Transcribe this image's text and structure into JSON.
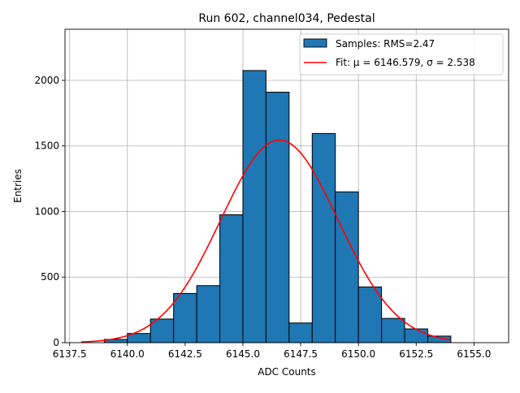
{
  "chart_data": {
    "type": "bar",
    "title": "Run 602, channel034, Pedestal",
    "xlabel": "ADC Counts",
    "ylabel": "Entries",
    "xlim": [
      6137.3,
      6156.5
    ],
    "ylim": [
      0,
      2390
    ],
    "grid": true,
    "legend_position": "top-right",
    "bar_color": "#1f77b4",
    "fit_color": "#ff0000",
    "x_ticks": [
      6137.5,
      6140.0,
      6142.5,
      6145.0,
      6147.5,
      6150.0,
      6152.5,
      6155.0
    ],
    "x_tick_labels": [
      "6137.5",
      "6140.0",
      "6142.5",
      "6145.0",
      "6147.5",
      "6150.0",
      "6152.5",
      "6155.0"
    ],
    "y_ticks": [
      0,
      500,
      1000,
      1500,
      2000
    ],
    "y_tick_labels": [
      "0",
      "500",
      "1000",
      "1500",
      "2000"
    ],
    "bins": [
      {
        "x0": 6139.0,
        "x1": 6140.0,
        "count": 25
      },
      {
        "x0": 6140.0,
        "x1": 6141.0,
        "count": 70
      },
      {
        "x0": 6141.0,
        "x1": 6142.0,
        "count": 180
      },
      {
        "x0": 6142.0,
        "x1": 6143.0,
        "count": 375
      },
      {
        "x0": 6143.0,
        "x1": 6144.0,
        "count": 435
      },
      {
        "x0": 6144.0,
        "x1": 6145.0,
        "count": 975
      },
      {
        "x0": 6145.0,
        "x1": 6146.0,
        "count": 2075
      },
      {
        "x0": 6146.0,
        "x1": 6147.0,
        "count": 1910
      },
      {
        "x0": 6147.0,
        "x1": 6148.0,
        "count": 150
      },
      {
        "x0": 6148.0,
        "x1": 6149.0,
        "count": 1595
      },
      {
        "x0": 6149.0,
        "x1": 6150.0,
        "count": 1150
      },
      {
        "x0": 6150.0,
        "x1": 6151.0,
        "count": 425
      },
      {
        "x0": 6151.0,
        "x1": 6152.0,
        "count": 185
      },
      {
        "x0": 6152.0,
        "x1": 6153.0,
        "count": 105
      },
      {
        "x0": 6153.0,
        "x1": 6154.0,
        "count": 50
      }
    ],
    "fit": {
      "mu": 6146.579,
      "sigma": 2.538,
      "amplitude": 1545,
      "x_range": [
        6138.0,
        6154.0
      ]
    },
    "legend": [
      {
        "kind": "patch",
        "label": "Samples: RMS=2.47"
      },
      {
        "kind": "line",
        "label": "Fit: μ = 6146.579, σ = 2.538"
      }
    ]
  }
}
